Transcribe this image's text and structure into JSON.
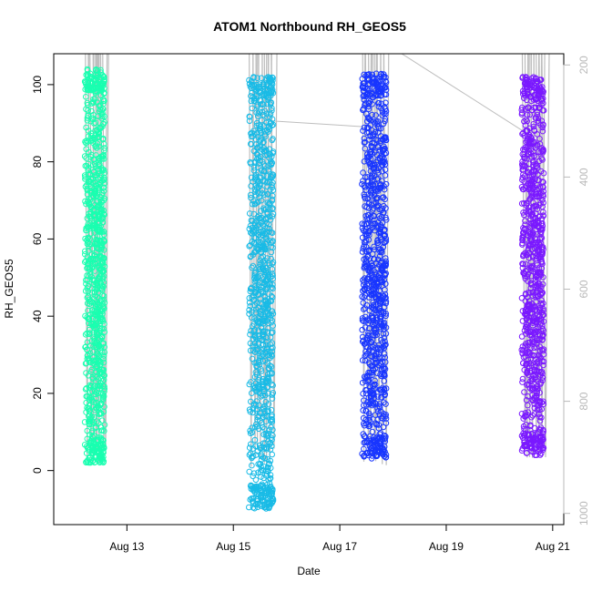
{
  "chart_data": {
    "type": "scatter",
    "title": "ATOM1 Northbound RH_GEOS5",
    "xlabel": "Date",
    "ylabel": "RH_GEOS5",
    "x_axis": {
      "type": "date",
      "range": [
        "2016-08-11 15:00",
        "2016-08-21 05:00"
      ],
      "ticks": [
        "Aug 13",
        "Aug 15",
        "Aug 17",
        "Aug 19",
        "Aug 21"
      ],
      "tick_dates": [
        "2016-08-13",
        "2016-08-15",
        "2016-08-17",
        "2016-08-19",
        "2016-08-21"
      ]
    },
    "y_axis": {
      "range": [
        -14,
        108
      ],
      "ticks": [
        0,
        20,
        40,
        60,
        80,
        100
      ]
    },
    "y2_axis": {
      "reversed": true,
      "range": [
        1020,
        180
      ],
      "ticks": [
        200,
        400,
        600,
        800,
        1000
      ],
      "color": "#b9b9b9"
    },
    "grid": false,
    "legend": "none",
    "series": [
      {
        "flight_date": "2016-08-12",
        "time_range": [
          "2016-08-12 05:00",
          "2016-08-12 14:00"
        ],
        "y_range": [
          2,
          104
        ],
        "color": "#19ffb0"
      },
      {
        "flight_date": "2016-08-15",
        "time_range": [
          "2016-08-15 07:00",
          "2016-08-15 18:00"
        ],
        "y_range": [
          -10,
          102
        ],
        "color": "#19bbe6"
      },
      {
        "flight_date": "2016-08-17",
        "time_range": [
          "2016-08-17 10:00",
          "2016-08-17 21:00"
        ],
        "y_range": [
          3,
          103
        ],
        "color": "#1936ff"
      },
      {
        "flight_date": "2016-08-20",
        "time_range": [
          "2016-08-20 10:00",
          "2016-08-20 20:00"
        ],
        "y_range": [
          4,
          102
        ],
        "color": "#7a19ff"
      }
    ],
    "pressure_line_color": "#bebebe"
  }
}
